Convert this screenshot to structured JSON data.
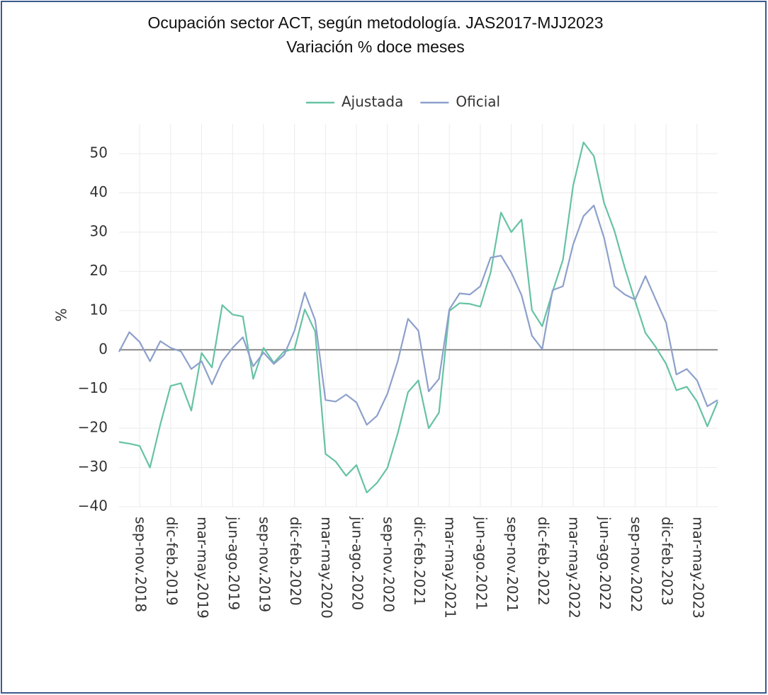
{
  "chart_data": {
    "type": "line",
    "title": "Ocupación sector ACT, según metodología. JAS2017-MJJ2023",
    "subtitle": "Variación % doce meses",
    "y_label": "%",
    "categories": [
      null,
      null,
      "sep-nov.2018",
      null,
      null,
      "dic-feb.2019",
      null,
      null,
      "mar-may.2019",
      null,
      null,
      "jun-ago.2019",
      null,
      null,
      "sep-nov.2019",
      null,
      null,
      "dic-feb.2020",
      null,
      null,
      "mar-may.2020",
      null,
      null,
      "jun-ago.2020",
      null,
      null,
      "sep-nov.2020",
      null,
      null,
      "dic-feb.2021",
      null,
      null,
      "mar-may.2021",
      null,
      null,
      "jun-ago.2021",
      null,
      null,
      "sep-nov.2021",
      null,
      null,
      "dic-feb.2022",
      null,
      null,
      "mar-may.2022",
      null,
      null,
      "jun-ago.2022",
      null,
      null,
      "sep-nov.2022",
      null,
      null,
      "dic-feb.2023",
      null,
      null,
      "mar-may.2023",
      null,
      null
    ],
    "series": [
      {
        "name": "Ajustada",
        "color": "#66c2a5",
        "values": [
          -23.5,
          -23.9,
          -24.5,
          -30,
          -19,
          -9.2,
          -8.5,
          -15.5,
          -0.8,
          -4.5,
          11.4,
          9,
          8.5,
          -7.4,
          0.5,
          -3.3,
          -0.4,
          0.2,
          10.3,
          4.7,
          -26.5,
          -28.5,
          -32.1,
          -29.4,
          -36.4,
          -33.9,
          -30.1,
          -21.3,
          -10.8,
          -7.8,
          -20,
          -16,
          9.9,
          11.9,
          11.7,
          11,
          19.7,
          35,
          30,
          33.2,
          10.1,
          6,
          14.8,
          22.9,
          41.9,
          52.9,
          49.4,
          37.4,
          30.3,
          20.9,
          12.5,
          4.3,
          0.7,
          -3.6,
          -10.3,
          -9.4,
          -13.2,
          -19.5,
          -13.2
        ]
      },
      {
        "name": "Oficial",
        "color": "#8da0cb",
        "values": [
          -0.5,
          4.5,
          2,
          -2.9,
          2.2,
          0.5,
          -0.4,
          -4.9,
          -2.9,
          -8.8,
          -2.9,
          0.5,
          3.2,
          -4.2,
          -0.7,
          -3.6,
          -1.3,
          4.9,
          14.6,
          7.6,
          -12.8,
          -13.2,
          -11.4,
          -13.4,
          -19.1,
          -16.8,
          -11.2,
          -2.9,
          7.9,
          4.9,
          -10.6,
          -7.4,
          10.3,
          14.4,
          14.1,
          16.2,
          23.5,
          24,
          19.7,
          13.9,
          3.6,
          0.2,
          15.2,
          16.2,
          26.9,
          34.1,
          36.8,
          28.5,
          16.2,
          14.1,
          12.8,
          18.8,
          12.8,
          6.9,
          -6.3,
          -4.9,
          -7.8,
          -14.4,
          -12.8
        ]
      }
    ],
    "ylim": [
      -40,
      57.6
    ],
    "yticks": [
      {
        "value": -40,
        "label": "−40"
      },
      {
        "value": -30,
        "label": "−30"
      },
      {
        "value": -20,
        "label": "−20"
      },
      {
        "value": -10,
        "label": "−10"
      },
      0,
      10,
      20,
      30,
      40,
      50
    ],
    "grid": true
  }
}
